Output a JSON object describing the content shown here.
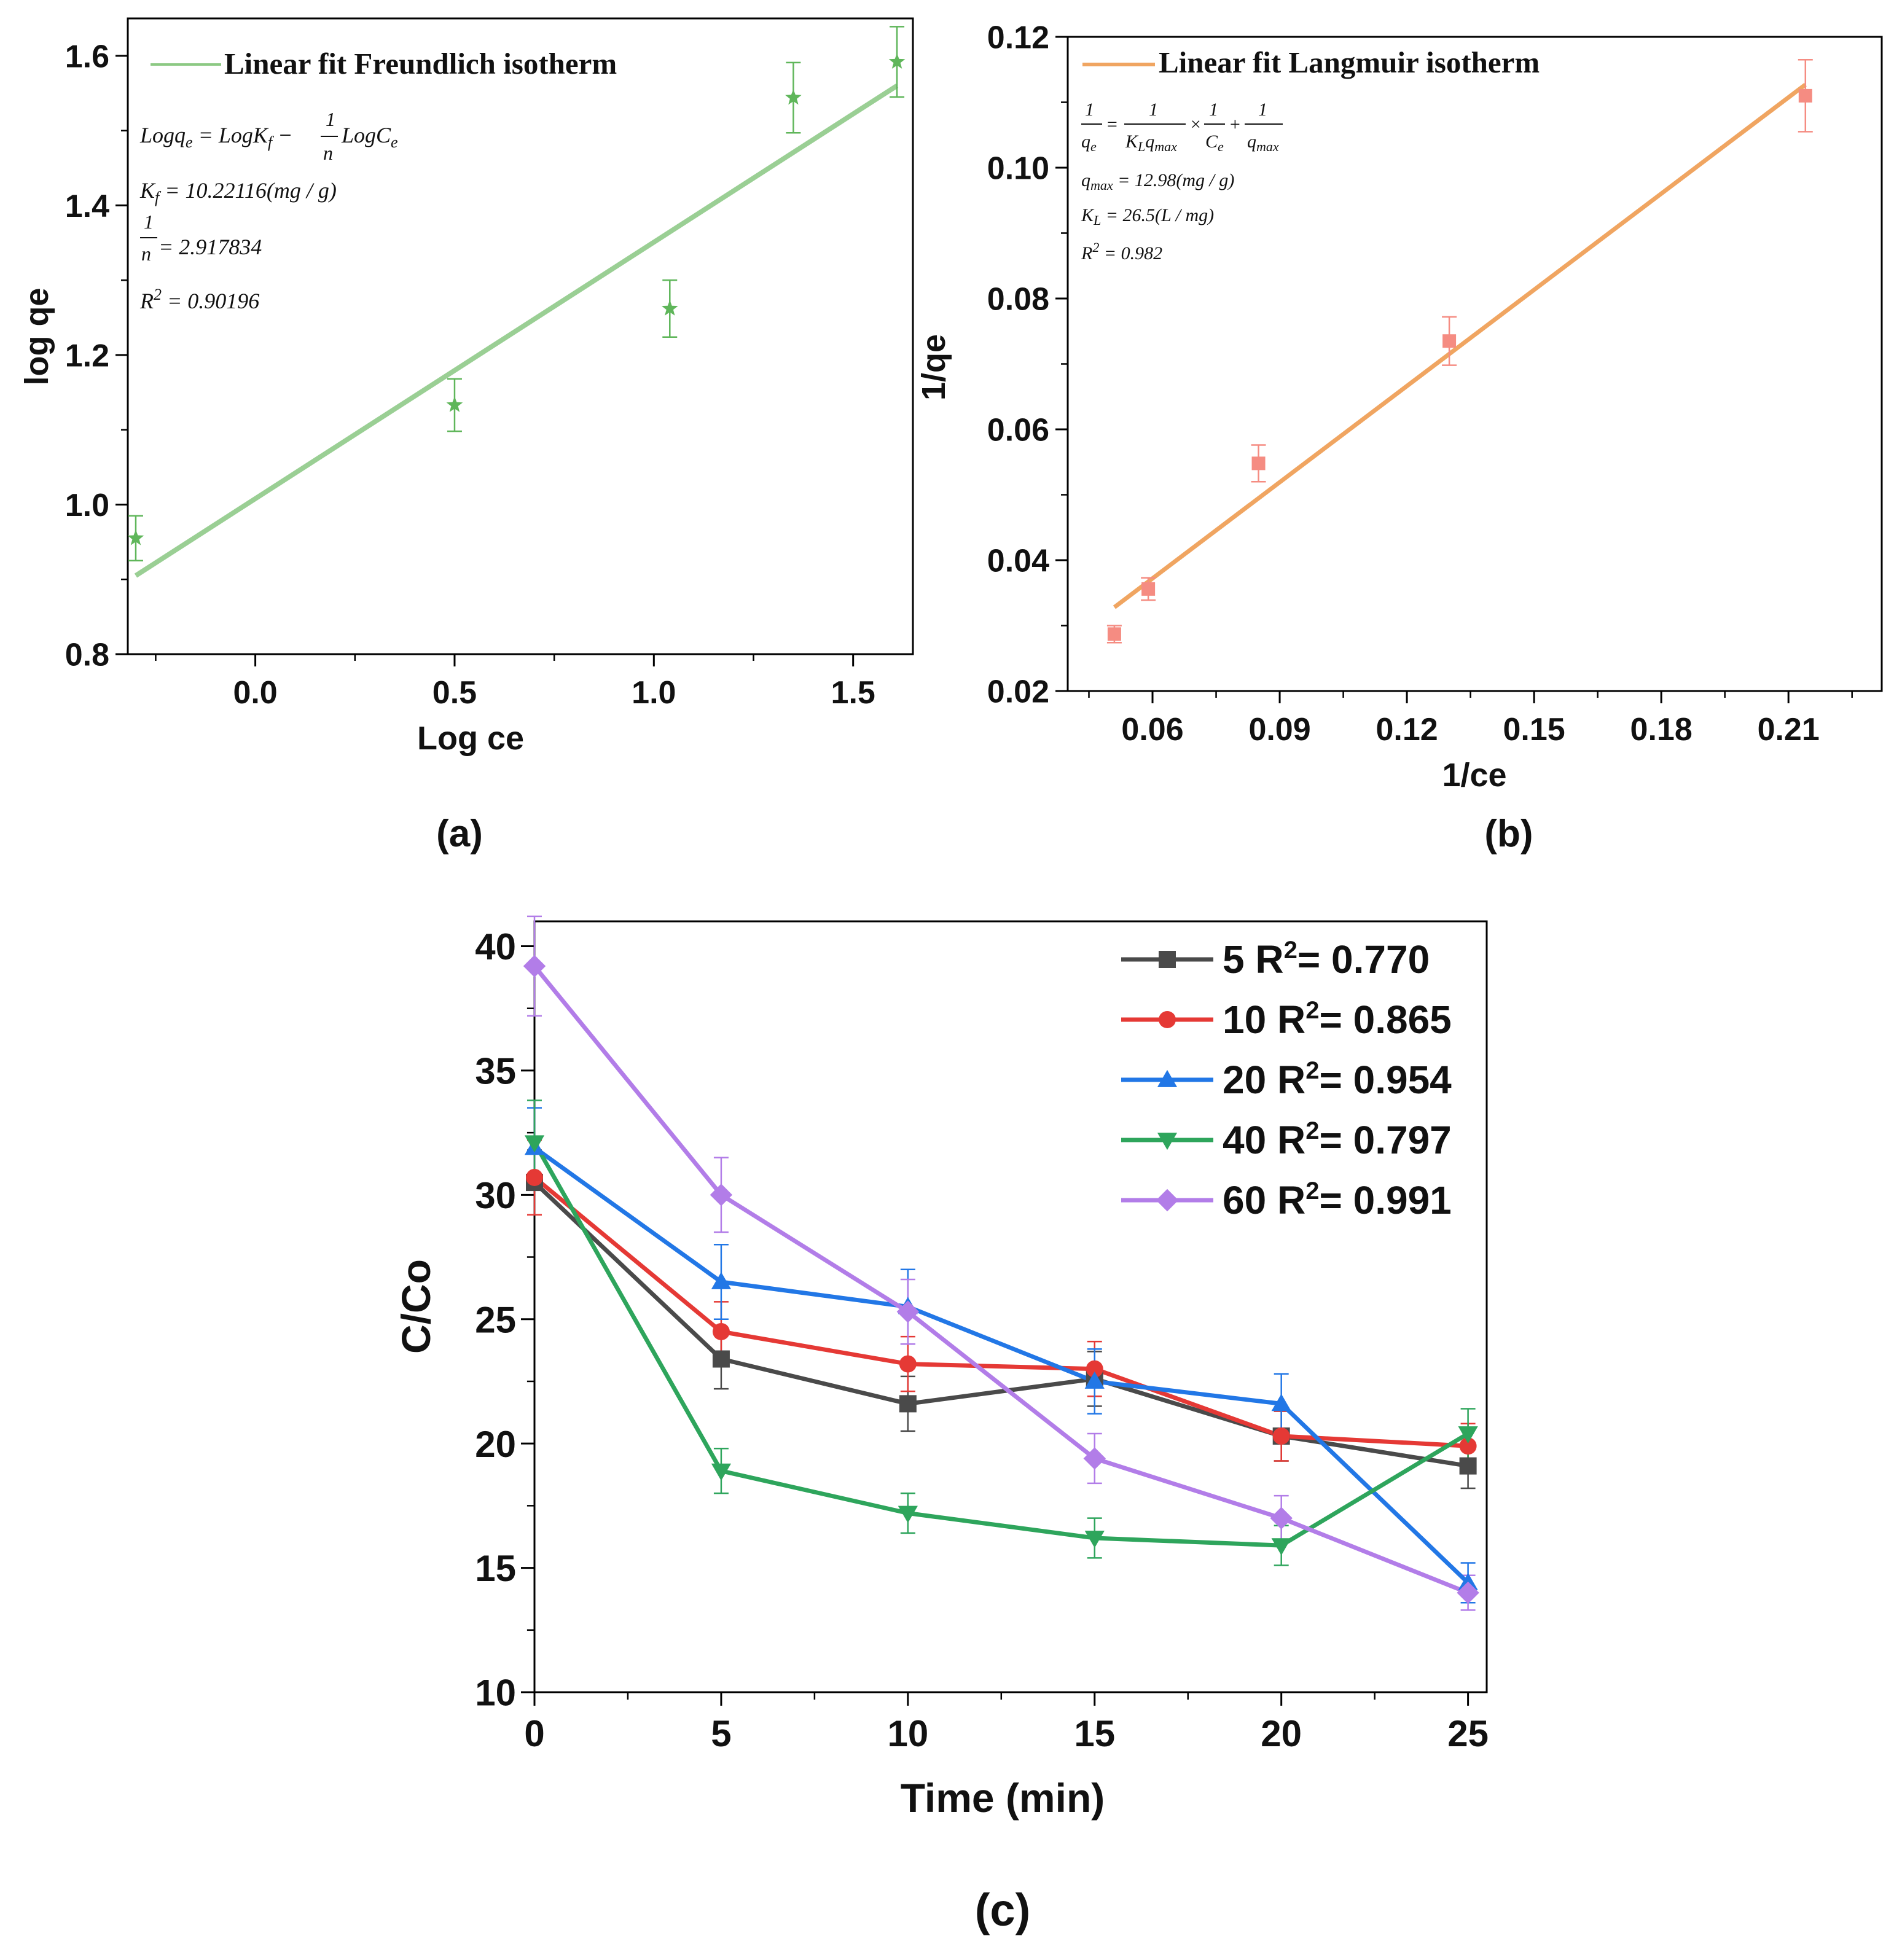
{
  "chart_data": [
    {
      "type": "scatter",
      "panel_label": "(a)",
      "xlabel": "Log ce",
      "ylabel": "log qe",
      "xlim": [
        -0.32,
        1.65
      ],
      "ylim": [
        0.8,
        1.65
      ],
      "x_ticks": [
        0.0,
        0.5,
        1.0,
        1.5
      ],
      "x_tick_labels": [
        "0.0",
        "0.5",
        "1.0",
        "1.5"
      ],
      "y_ticks": [
        0.8,
        1.0,
        1.2,
        1.4,
        1.6
      ],
      "y_tick_labels": [
        "0.8",
        "1.0",
        "1.2",
        "1.4",
        "1.6"
      ],
      "legend": "Linear fit Freundlich isotherm",
      "colors": {
        "line": "#9ACF94",
        "marker": "#5FB65A"
      },
      "points": {
        "x": [
          -0.3,
          0.5,
          1.04,
          1.35,
          1.61
        ],
        "y": [
          0.955,
          1.133,
          1.262,
          1.544,
          1.592
        ],
        "err": [
          0.03,
          0.035,
          0.038,
          0.047,
          0.047
        ]
      },
      "fit": {
        "x": [
          -0.3,
          1.61
        ],
        "y": [
          0.905,
          1.56
        ]
      },
      "equation": {
        "model_lhs": "Logq",
        "model_lhs_sub": "e",
        "model_mid": " = LogK",
        "model_mid_sub": "f",
        "model_minus": " − ",
        "model_frac_num": "1",
        "model_frac_den": "n",
        "model_rhs": "LogC",
        "model_rhs_sub": "e",
        "kf_lhs": "K",
        "kf_sub": "f",
        "kf_rhs": " = 10.22116(mg / g)",
        "n_frac_num": "1",
        "n_frac_den": "n",
        "n_rhs": " = 2.917834",
        "r2_lhs": "R",
        "r2_sup": "2",
        "r2_rhs": " = 0.90196"
      }
    },
    {
      "type": "scatter",
      "panel_label": "(b)",
      "xlabel": "1/ce",
      "ylabel": "1/qe",
      "xlim": [
        0.04,
        0.232
      ],
      "ylim": [
        0.02,
        0.12
      ],
      "x_ticks": [
        0.06,
        0.09,
        0.12,
        0.15,
        0.18,
        0.21
      ],
      "x_tick_labels": [
        "0.06",
        "0.09",
        "0.12",
        "0.15",
        "0.18",
        "0.21"
      ],
      "y_ticks": [
        0.02,
        0.04,
        0.06,
        0.08,
        0.1,
        0.12
      ],
      "y_tick_labels": [
        "0.02",
        "0.04",
        "0.06",
        "0.08",
        "0.10",
        "0.12"
      ],
      "legend": "Linear fit Langmuir isotherm",
      "colors": {
        "line": "#F0A561",
        "marker": "#F58C82"
      },
      "points": {
        "x": [
          0.051,
          0.059,
          0.085,
          0.13,
          0.214
        ],
        "y": [
          0.0287,
          0.0356,
          0.0548,
          0.0735,
          0.111
        ],
        "err": [
          0.0013,
          0.0017,
          0.0028,
          0.0037,
          0.0055
        ]
      },
      "fit": {
        "x": [
          0.051,
          0.214
        ],
        "y": [
          0.0328,
          0.1127
        ]
      },
      "equation": {
        "eq_num1": "1",
        "eq_den1": "q",
        "eq_den1_sub": "e",
        "eq_eq": "=",
        "eq_num2": "1",
        "eq_den2": "K",
        "eq_den2_sub": "L",
        "eq_den2b": "q",
        "eq_den2b_sub": "max",
        "eq_times": "×",
        "eq_num3": "1",
        "eq_den3": "C",
        "eq_den3_sub": "e",
        "eq_plus": "+",
        "eq_num4": "1",
        "eq_den4": "q",
        "eq_den4_sub": "max",
        "qmax_lhs": "q",
        "qmax_sub": "max",
        "qmax_rhs": " = 12.98(mg / g)",
        "kl_lhs": "K",
        "kl_sub": "L",
        "kl_rhs": " = 26.5(L / mg)",
        "r2_lhs": "R",
        "r2_sup": "2",
        "r2_rhs": " = 0.982"
      }
    },
    {
      "type": "line",
      "panel_label": "(c)",
      "xlabel": "Time (min)",
      "ylabel": "C/Co",
      "xlim": [
        0,
        25.5
      ],
      "ylim": [
        10,
        41
      ],
      "x_ticks": [
        0,
        5,
        10,
        15,
        20,
        25
      ],
      "x_tick_labels": [
        "0",
        "5",
        "10",
        "15",
        "20",
        "25"
      ],
      "y_ticks": [
        10,
        15,
        20,
        25,
        30,
        35,
        40
      ],
      "y_tick_labels": [
        "10",
        "15",
        "20",
        "25",
        "30",
        "35",
        "40"
      ],
      "x": [
        0,
        5,
        10,
        15,
        20,
        25
      ],
      "series": [
        {
          "name": "5",
          "legend_gap": true,
          "r2_label": "R",
          "r2_sup": "2",
          "r2_value": "= 0.770",
          "color": "#4A4A4A",
          "marker": "square",
          "values": [
            30.5,
            23.4,
            21.6,
            22.6,
            20.3,
            19.1
          ],
          "err": [
            1.3,
            1.2,
            1.1,
            1.1,
            1.0,
            0.9
          ]
        },
        {
          "name": "10",
          "legend_gap": false,
          "r2_label": "R",
          "r2_sup": "2",
          "r2_value": "= 0.865",
          "color": "#E53935",
          "marker": "circle",
          "values": [
            30.7,
            24.5,
            23.2,
            23.0,
            20.3,
            19.9
          ],
          "err": [
            1.5,
            1.2,
            1.1,
            1.1,
            1.0,
            0.9
          ]
        },
        {
          "name": "20",
          "legend_gap": false,
          "r2_label": "R",
          "r2_sup": "2",
          "r2_value": "= 0.954",
          "color": "#2277E6",
          "marker": "triangle-up",
          "values": [
            31.9,
            26.5,
            25.5,
            22.5,
            21.6,
            14.4
          ],
          "err": [
            1.6,
            1.5,
            1.5,
            1.3,
            1.2,
            0.8
          ]
        },
        {
          "name": "40",
          "legend_gap": false,
          "r2_label": "R",
          "r2_sup": "2",
          "r2_value": "= 0.797",
          "color": "#2EA55C",
          "marker": "triangle-down",
          "values": [
            32.1,
            18.9,
            17.2,
            16.2,
            15.9,
            20.4
          ],
          "err": [
            1.7,
            0.9,
            0.8,
            0.8,
            0.8,
            1.0
          ]
        },
        {
          "name": "60",
          "legend_gap": false,
          "r2_label": "R",
          "r2_sup": "2",
          "r2_value": "= 0.991",
          "color": "#B27DE8",
          "marker": "diamond",
          "values": [
            39.2,
            30.0,
            25.3,
            19.4,
            17.0,
            14.0
          ],
          "err": [
            2.0,
            1.5,
            1.3,
            1.0,
            0.9,
            0.7
          ]
        }
      ]
    }
  ]
}
